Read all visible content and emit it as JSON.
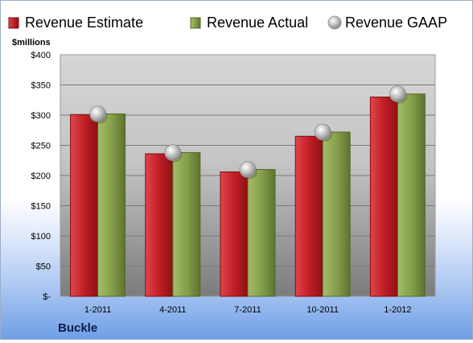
{
  "chart_data": {
    "type": "bar",
    "title": "",
    "company": "Buckle",
    "ylabel": "$millions",
    "ylim": [
      0,
      400
    ],
    "yticks": [
      0,
      50,
      100,
      150,
      200,
      250,
      300,
      350,
      400
    ],
    "ytick_labels": [
      "$-",
      "$50",
      "$100",
      "$150",
      "$200",
      "$250",
      "$300",
      "$350",
      "$400"
    ],
    "categories": [
      "1-2011",
      "4-2011",
      "7-2011",
      "10-2011",
      "1-2012"
    ],
    "series": [
      {
        "name": "Revenue Estimate",
        "kind": "bar",
        "color": "#c8242a",
        "values": [
          301,
          236,
          206,
          265,
          330
        ]
      },
      {
        "name": "Revenue Actual",
        "kind": "bar",
        "color": "#86a04a",
        "values": [
          302,
          238,
          210,
          272,
          335
        ]
      },
      {
        "name": "Revenue GAAP",
        "kind": "marker",
        "color": "#b4b4b4",
        "values": [
          302,
          238,
          210,
          272,
          335
        ]
      }
    ],
    "legend": "top",
    "grid": true
  }
}
